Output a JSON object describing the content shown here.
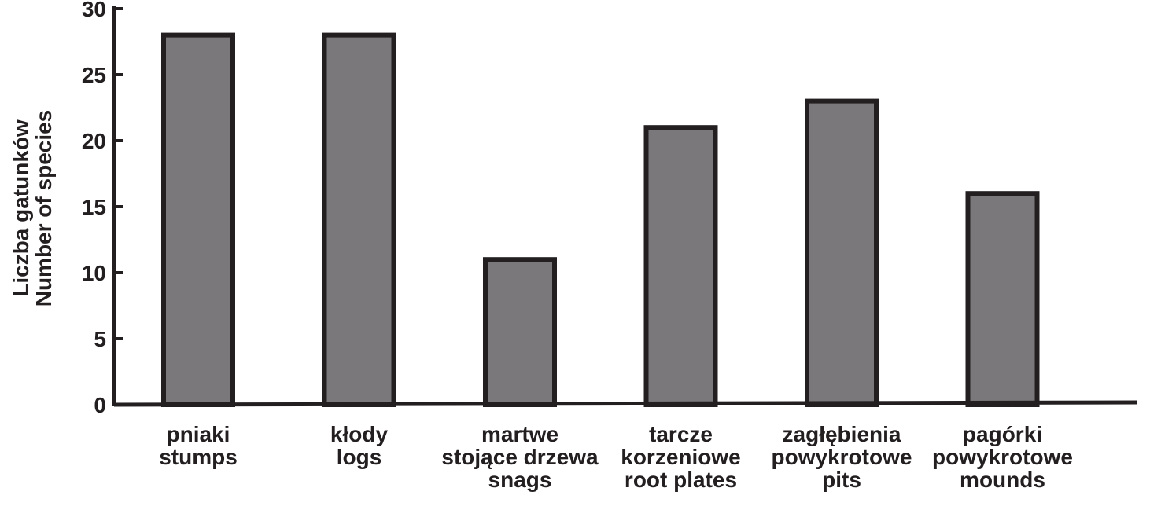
{
  "chart_data": {
    "type": "bar",
    "categories": [
      [
        "pniaki",
        "stumps"
      ],
      [
        "kłody",
        "logs"
      ],
      [
        "martwe",
        "stojące drzewa",
        "snags"
      ],
      [
        "tarcze",
        "korzeniowe",
        "root plates"
      ],
      [
        "zagłębienia",
        "powykrotowe",
        "pits"
      ],
      [
        "pagórki",
        "powykrotowe",
        "mounds"
      ]
    ],
    "values": [
      28,
      28,
      11,
      21,
      23,
      16
    ],
    "ylabel": [
      "Liczba gatunków",
      "Number of species"
    ],
    "xlabel": "",
    "title": "",
    "ylim": [
      0,
      30
    ],
    "yticks": [
      "0",
      "5",
      "10",
      "15",
      "20",
      "25",
      "30"
    ],
    "grid": false,
    "colors": {
      "bar_fill": "#7a787a",
      "bar_stroke": "#231f20",
      "axis": "#231f20"
    }
  }
}
